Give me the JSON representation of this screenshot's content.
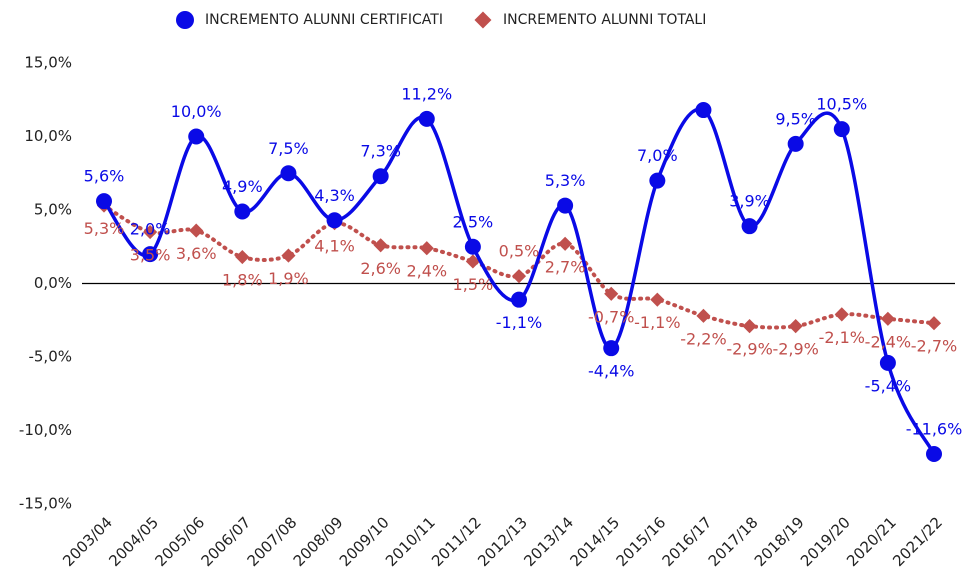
{
  "chart_data": {
    "type": "line",
    "categories": [
      "2003/04",
      "2004/05",
      "2005/06",
      "2006/07",
      "2007/08",
      "2008/09",
      "2009/10",
      "2010/11",
      "2011/12",
      "2012/13",
      "2013/14",
      "2014/15",
      "2015/16",
      "2016/17",
      "2017/18",
      "2018/19",
      "2019/20",
      "2020/21",
      "2021/22"
    ],
    "series": [
      {
        "name": "INCREMENTO ALUNNI CERTIFICATI",
        "color": "#0a0ae6",
        "marker": "circle",
        "line": "solid",
        "values": [
          5.6,
          2.0,
          10.0,
          4.9,
          7.5,
          4.3,
          7.3,
          11.2,
          2.5,
          -1.1,
          5.3,
          -4.4,
          7.0,
          11.8,
          3.9,
          9.5,
          10.5,
          -5.4,
          -11.6
        ],
        "value_labels": [
          "5,6%",
          "2,0%",
          "10,0%",
          "4,9%",
          "7,5%",
          "4,3%",
          "7,3%",
          "11,2%",
          "2,5%",
          "-1,1%",
          "5,3%",
          "-4,4%",
          "7,0%",
          null,
          "3,9%",
          "9,5%",
          "10,5%",
          "-5,4%",
          "-11,6%"
        ]
      },
      {
        "name": "INCREMENTO ALUNNI TOTALI",
        "color": "#c0504d",
        "marker": "diamond",
        "line": "dotted",
        "values": [
          5.3,
          3.5,
          3.6,
          1.8,
          1.9,
          4.1,
          2.6,
          2.4,
          1.5,
          0.5,
          2.7,
          -0.7,
          -1.1,
          -2.2,
          -2.9,
          -2.9,
          -2.1,
          -2.4,
          -2.7
        ],
        "value_labels": [
          "5,3%",
          "3,5%",
          "3,6%",
          "1,8%",
          "1,9%",
          "4,1%",
          "2,6%",
          "2,4%",
          "1,5%",
          "0,5%",
          "2,7%",
          "-0,7%",
          "-1,1%",
          "-2,2%",
          "-2,9%",
          "-2,9%",
          "-2,1%",
          "-2,4%",
          "-2,7%"
        ]
      }
    ],
    "ylim": [
      -15,
      15
    ],
    "yticks": [
      {
        "value": -15,
        "label": "-15,0%"
      },
      {
        "value": -10,
        "label": "-10,0%"
      },
      {
        "value": -5,
        "label": "-5,0%"
      },
      {
        "value": 0,
        "label": "0,0%"
      },
      {
        "value": 5,
        "label": "5,0%"
      },
      {
        "value": 10,
        "label": "10,0%"
      },
      {
        "value": 15,
        "label": "15,0%"
      }
    ],
    "grid": false,
    "legend": "top",
    "smooth": true
  }
}
